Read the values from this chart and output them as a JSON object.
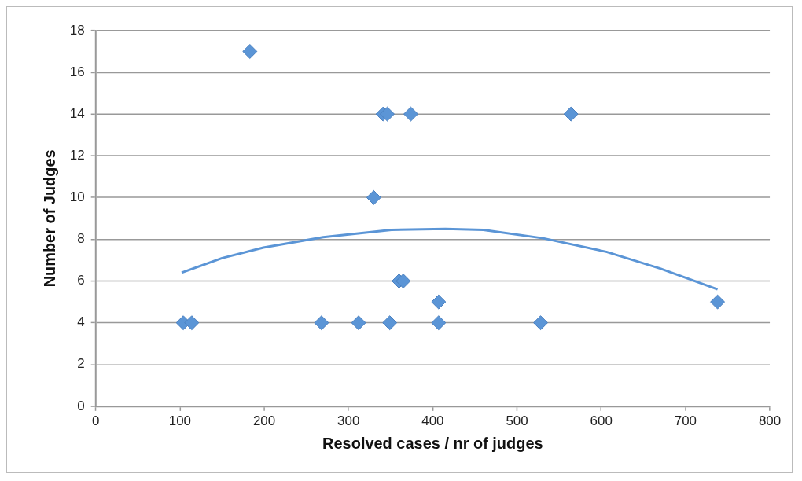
{
  "chart_data": {
    "type": "scatter",
    "xlabel": "Resolved cases / nr of judges",
    "ylabel": "Number of Judges",
    "xlim": [
      0,
      800
    ],
    "xticks": [
      0,
      100,
      200,
      300,
      400,
      500,
      600,
      700,
      800
    ],
    "ylim": [
      0,
      18
    ],
    "yticks": [
      0,
      2,
      4,
      6,
      8,
      10,
      12,
      14,
      16,
      18
    ],
    "grid": "y",
    "legend": false,
    "marker": "diamond",
    "series": [
      {
        "type": "scatter",
        "color": "#5b95d6",
        "x": [
          183,
          341,
          346,
          374,
          564,
          330,
          360,
          365,
          407,
          738,
          104,
          114,
          268,
          312,
          349,
          407,
          528
        ],
        "values": [
          17,
          14,
          14,
          14,
          14,
          10,
          6,
          6,
          5,
          5,
          4,
          4,
          4,
          4,
          4,
          4,
          4
        ]
      },
      {
        "type": "line",
        "color": "#5b95d6",
        "marker": "none",
        "line_style": "solid",
        "x": [
          102,
          150,
          199,
          270,
          351,
          415,
          460,
          531,
          606,
          670,
          738
        ],
        "values": [
          6.4,
          7.1,
          7.6,
          8.1,
          8.45,
          8.5,
          8.45,
          8.05,
          7.4,
          6.6,
          5.6
        ]
      }
    ]
  }
}
